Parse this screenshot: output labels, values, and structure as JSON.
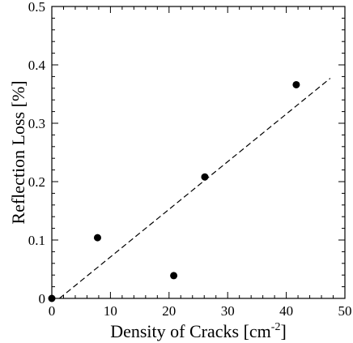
{
  "chart_data": {
    "type": "scatter",
    "xlabel": "Density of Cracks [cm",
    "xlabel_sup": "-2",
    "xlabel_end": "]",
    "ylabel": "Reflection Loss [%]",
    "xlim": [
      0,
      50
    ],
    "ylim": [
      0,
      0.5
    ],
    "x_ticks": [
      0,
      10,
      20,
      30,
      40,
      50
    ],
    "y_ticks": [
      0,
      0.1,
      0.2,
      0.3,
      0.4,
      0.5
    ],
    "x_tick_labels": [
      "0",
      "10",
      "20",
      "30",
      "40",
      "50"
    ],
    "y_tick_labels": [
      "0",
      "0.1",
      "0.2",
      "0.3",
      "0.4",
      "0.5"
    ],
    "points": [
      {
        "x": 0,
        "y": 0
      },
      {
        "x": 7.8,
        "y": 0.104
      },
      {
        "x": 20.8,
        "y": 0.039
      },
      {
        "x": 26.1,
        "y": 0.208
      },
      {
        "x": 41.7,
        "y": 0.366
      }
    ],
    "fit_line": {
      "x": [
        1.3,
        47.5
      ],
      "y": [
        0,
        0.377
      ],
      "style": "dashed"
    },
    "grid": false,
    "colors": {
      "points": "#000000",
      "line": "#000000",
      "axes": "#000000"
    }
  }
}
